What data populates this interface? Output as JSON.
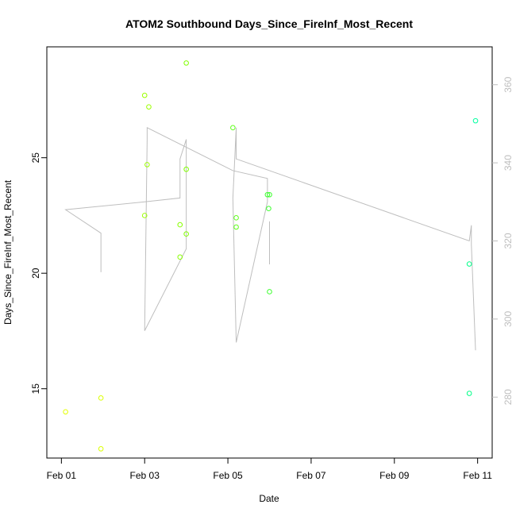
{
  "chart_data": {
    "type": "scatter",
    "title": "ATOM2 Southbound Days_Since_FireInf_Most_Recent",
    "xlabel": "Date",
    "ylabel": "Days_Since_FireInf_Most_Recent",
    "x_ticks": [
      "Feb 01",
      "Feb 03",
      "Feb 05",
      "Feb 07",
      "Feb 09",
      "Feb 11"
    ],
    "y_ticks": [
      15,
      20,
      25
    ],
    "y2_ticks": [
      280,
      300,
      320,
      340,
      360
    ],
    "x_range_days": [
      -0.35,
      10.35
    ],
    "ylim": [
      12,
      29.8
    ],
    "y2lim": [
      264.4,
      369.7
    ],
    "grid": false,
    "legend": "none",
    "colors": {
      "line": "#bebebe",
      "right_axis": "#bebebe",
      "axis": "#000000"
    },
    "points": [
      {
        "x": 0.1,
        "y": 14.0,
        "color": "#e4ff00"
      },
      {
        "x": 0.95,
        "y": 14.6,
        "color": "#dbff00"
      },
      {
        "x": 0.95,
        "y": 12.4,
        "color": "#dbff00"
      },
      {
        "x": 2.0,
        "y": 27.7,
        "color": "#9cff00"
      },
      {
        "x": 2.1,
        "y": 27.2,
        "color": "#9cff00"
      },
      {
        "x": 2.06,
        "y": 24.7,
        "color": "#9cff00"
      },
      {
        "x": 2.0,
        "y": 22.5,
        "color": "#9cff00"
      },
      {
        "x": 2.85,
        "y": 22.1,
        "color": "#88ff00"
      },
      {
        "x": 2.85,
        "y": 20.7,
        "color": "#88ff00"
      },
      {
        "x": 3.0,
        "y": 29.1,
        "color": "#80ff00"
      },
      {
        "x": 3.0,
        "y": 24.5,
        "color": "#80ff00"
      },
      {
        "x": 3.0,
        "y": 21.7,
        "color": "#80ff00"
      },
      {
        "x": 4.12,
        "y": 26.3,
        "color": "#5fff1a"
      },
      {
        "x": 4.2,
        "y": 22.4,
        "color": "#5fff1a"
      },
      {
        "x": 4.2,
        "y": 22.0,
        "color": "#5fff1a"
      },
      {
        "x": 4.95,
        "y": 23.4,
        "color": "#3cff2e"
      },
      {
        "x": 5.0,
        "y": 23.4,
        "color": "#3cff2e"
      },
      {
        "x": 4.98,
        "y": 22.8,
        "color": "#3cff2e"
      },
      {
        "x": 5.0,
        "y": 19.2,
        "color": "#3cff2e"
      },
      {
        "x": 9.8,
        "y": 20.4,
        "color": "#00ff88"
      },
      {
        "x": 9.8,
        "y": 14.8,
        "color": "#00ff88"
      },
      {
        "x": 9.95,
        "y": 26.6,
        "color": "#00ffa0"
      }
    ],
    "line_series_y2": [
      [
        0.1,
        328
      ],
      [
        0.95,
        322
      ],
      [
        0.95,
        312
      ],
      [
        0.95,
        322
      ],
      [
        0.1,
        328
      ],
      [
        2.0,
        330
      ],
      [
        2.85,
        331
      ],
      [
        2.85,
        341
      ],
      [
        3.0,
        346
      ],
      [
        3.0,
        318
      ],
      [
        2.0,
        297
      ],
      [
        2.06,
        346
      ],
      [
        2.06,
        349
      ],
      [
        4.12,
        338
      ],
      [
        4.95,
        336
      ],
      [
        4.95,
        330
      ],
      [
        4.2,
        294
      ],
      [
        4.12,
        331
      ],
      [
        4.2,
        349
      ],
      [
        4.2,
        341
      ],
      [
        9.8,
        320
      ],
      [
        9.85,
        324
      ],
      [
        9.85,
        319
      ],
      [
        9.95,
        292
      ]
    ],
    "line_segments_extra": [
      [
        [
          5.0,
          314
        ],
        [
          5.0,
          325
        ]
      ]
    ]
  }
}
